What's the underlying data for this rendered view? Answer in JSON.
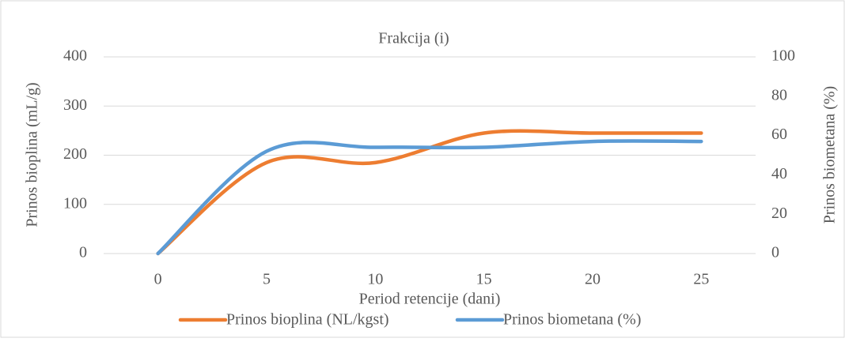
{
  "chart_data": {
    "type": "line",
    "title": "Frakcija (i)",
    "x_label": "Period retencije (dani)",
    "y_label": "Prinos bioplina (mL/g)",
    "y2_label": "Prinos biometana (%)",
    "x": [
      0,
      5,
      10,
      15,
      20,
      25
    ],
    "series": [
      {
        "name": "Prinos bioplina (NL/kgst)",
        "color": "#ED7D31",
        "values": [
          0,
          185,
          185,
          245,
          245,
          245
        ]
      },
      {
        "name": "Prinos biometana (%)",
        "color": "#5B9BD5",
        "axis": "y2",
        "values": [
          0,
          52,
          54,
          54,
          57,
          57
        ]
      }
    ],
    "xlim": [
      -2.5,
      27.5
    ],
    "xticks": [
      0,
      5,
      10,
      15,
      20,
      25
    ],
    "ylim": [
      0,
      400
    ],
    "yticks": [
      0,
      100,
      200,
      300,
      400
    ],
    "y2lim": [
      0,
      100
    ],
    "y2ticks": [
      0,
      20,
      40,
      60,
      80,
      100
    ],
    "grid": true,
    "smooth": true,
    "legend": "bottom"
  }
}
